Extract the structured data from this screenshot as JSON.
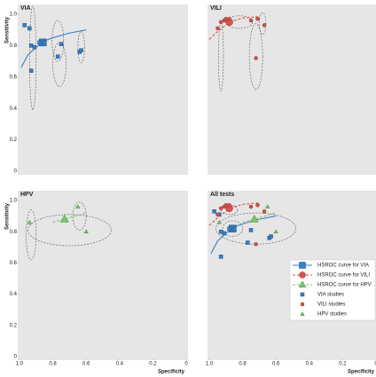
{
  "chart_data": [
    {
      "type": "scatter",
      "title": "VIA",
      "ylabel": "Sensitivity",
      "xlim": [
        1,
        0
      ],
      "ylim": [
        0,
        1
      ],
      "yticks": [
        0,
        0.2,
        0.4,
        0.6,
        0.8,
        {
          "value": 1,
          "label": "1.0"
        }
      ],
      "series": [
        {
          "color": "#3b7fc4",
          "marker": "square",
          "style": "solid",
          "x": [
            0.99,
            0.95,
            0.9,
            0.85,
            0.8,
            0.7,
            0.6
          ],
          "y": [
            0.66,
            0.74,
            0.79,
            0.83,
            0.85,
            0.88,
            0.9
          ],
          "summary_x": 0.86,
          "summary_y": 0.82
        },
        {
          "color": "#3b7fc4",
          "marker": "square",
          "style": "points",
          "x": [
            0.97,
            0.94,
            0.93,
            0.93,
            0.91,
            0.88,
            0.85,
            0.75,
            0.77,
            0.64,
            0.63
          ],
          "y": [
            0.93,
            0.91,
            0.8,
            0.64,
            0.79,
            0.82,
            0.82,
            0.81,
            0.73,
            0.76,
            0.77
          ]
        }
      ],
      "ellipses": [
        {
          "x": 0.92,
          "y": 0.72,
          "rx": 0.02,
          "ry": 0.33
        },
        {
          "x": 0.77,
          "y": 0.83,
          "rx": 0.035,
          "ry": 0.13
        },
        {
          "x": 0.76,
          "y": 0.68,
          "rx": 0.04,
          "ry": 0.14
        },
        {
          "x": 0.63,
          "y": 0.79,
          "rx": 0.02,
          "ry": 0.1
        }
      ]
    },
    {
      "type": "scatter",
      "title": "VILI",
      "xlim": [
        1,
        0
      ],
      "ylim": [
        0,
        1
      ],
      "series": [
        {
          "color": "#d9534f",
          "marker": "circle",
          "style": "dashed",
          "x": [
            1.0,
            0.95,
            0.9,
            0.85,
            0.8,
            0.7
          ],
          "y": [
            0.84,
            0.89,
            0.93,
            0.96,
            0.975,
            0.985
          ],
          "summary_x": 0.88,
          "summary_y": 0.95
        },
        {
          "color": "#d9534f",
          "marker": "circle",
          "style": "points",
          "x": [
            0.95,
            0.93,
            0.91,
            0.9,
            0.88,
            0.75,
            0.71,
            0.67,
            0.72
          ],
          "y": [
            0.91,
            0.95,
            0.96,
            0.97,
            0.97,
            0.96,
            0.97,
            0.93,
            0.72
          ]
        }
      ],
      "ellipses": [
        {
          "x": 0.93,
          "y": 0.73,
          "rx": 0.015,
          "ry": 0.22
        },
        {
          "x": 0.72,
          "y": 0.73,
          "rx": 0.04,
          "ry": 0.21
        },
        {
          "x": 0.68,
          "y": 0.94,
          "rx": 0.02,
          "ry": 0.07
        },
        {
          "x": 0.82,
          "y": 0.95,
          "rx": 0.08,
          "ry": 0.04
        }
      ]
    },
    {
      "type": "scatter",
      "title": "HPV",
      "xlabel": "Specificity",
      "ylabel": "Sensitivity",
      "xlim": [
        1,
        0
      ],
      "ylim": [
        0,
        1
      ],
      "xticks": [
        {
          "value": 1,
          "label": "1.0"
        },
        0.8,
        0.6,
        0.4,
        0.2,
        0
      ],
      "yticks": [
        0,
        0.2,
        0.4,
        0.6,
        0.8,
        {
          "value": 1,
          "label": "1.0"
        }
      ],
      "series": [
        {
          "color": "#7dc56a",
          "marker": "triangle",
          "style": "dashed",
          "x": [
            0.8,
            0.75,
            0.7,
            0.65,
            0.6
          ],
          "y": [
            0.86,
            0.875,
            0.89,
            0.905,
            0.92
          ],
          "summary_x": 0.73,
          "summary_y": 0.88
        },
        {
          "color": "#7dc56a",
          "marker": "triangle",
          "style": "points",
          "x": [
            0.94,
            0.65,
            0.6
          ],
          "y": [
            0.86,
            0.96,
            0.8
          ]
        }
      ],
      "ellipses": [
        {
          "x": 0.93,
          "y": 0.78,
          "rx": 0.03,
          "ry": 0.16
        },
        {
          "x": 0.64,
          "y": 0.9,
          "rx": 0.04,
          "ry": 0.09
        },
        {
          "x": 0.7,
          "y": 0.81,
          "rx": 0.25,
          "ry": 0.1
        }
      ]
    },
    {
      "type": "scatter",
      "title": "All tests",
      "xlabel": "Specificity",
      "xlim": [
        1,
        0
      ],
      "ylim": [
        0,
        1
      ],
      "xticks": [
        {
          "value": 1,
          "label": "1.0"
        },
        0.8,
        0.6,
        0.4,
        0.2,
        0
      ],
      "legend": "right",
      "series": [
        {
          "name": "HSROC curve for VIA",
          "color": "#3b7fc4",
          "marker": "square",
          "style": "solid",
          "x": [
            0.99,
            0.95,
            0.9,
            0.85,
            0.8,
            0.7,
            0.6
          ],
          "y": [
            0.66,
            0.74,
            0.79,
            0.83,
            0.85,
            0.88,
            0.9
          ],
          "summary_x": 0.86,
          "summary_y": 0.82
        },
        {
          "name": "HSROC curve for VILI",
          "color": "#d9534f",
          "marker": "circle",
          "style": "dashed",
          "x": [
            1.0,
            0.95,
            0.9,
            0.85,
            0.8,
            0.7
          ],
          "y": [
            0.84,
            0.89,
            0.93,
            0.96,
            0.975,
            0.985
          ],
          "summary_x": 0.88,
          "summary_y": 0.95
        },
        {
          "name": "HSROC curve for HPV",
          "color": "#7dc56a",
          "marker": "triangle",
          "style": "dashed",
          "x": [
            0.8,
            0.75,
            0.7,
            0.65,
            0.6
          ],
          "y": [
            0.86,
            0.875,
            0.89,
            0.905,
            0.92
          ],
          "summary_x": 0.73,
          "summary_y": 0.88
        },
        {
          "name": "VIA studies",
          "color": "#3b7fc4",
          "marker": "square",
          "style": "points",
          "x": [
            0.97,
            0.94,
            0.93,
            0.93,
            0.91,
            0.88,
            0.85,
            0.75,
            0.77,
            0.64,
            0.63
          ],
          "y": [
            0.93,
            0.91,
            0.8,
            0.64,
            0.79,
            0.82,
            0.82,
            0.81,
            0.73,
            0.76,
            0.77
          ]
        },
        {
          "name": "VILI studies",
          "color": "#d9534f",
          "marker": "circle",
          "style": "points",
          "x": [
            0.95,
            0.93,
            0.91,
            0.9,
            0.88,
            0.75,
            0.71,
            0.67,
            0.72
          ],
          "y": [
            0.91,
            0.95,
            0.96,
            0.97,
            0.97,
            0.96,
            0.97,
            0.93,
            0.72
          ]
        },
        {
          "name": "HPV studies",
          "color": "#7dc56a",
          "marker": "triangle",
          "style": "points",
          "x": [
            0.94,
            0.65,
            0.6
          ],
          "y": [
            0.86,
            0.96,
            0.8
          ]
        }
      ],
      "ellipses": [
        {
          "x": 0.86,
          "y": 0.82,
          "rx": 0.06,
          "ry": 0.05
        },
        {
          "x": 0.88,
          "y": 0.94,
          "rx": 0.05,
          "ry": 0.03
        },
        {
          "x": 0.72,
          "y": 0.82,
          "rx": 0.24,
          "ry": 0.1
        }
      ]
    }
  ]
}
